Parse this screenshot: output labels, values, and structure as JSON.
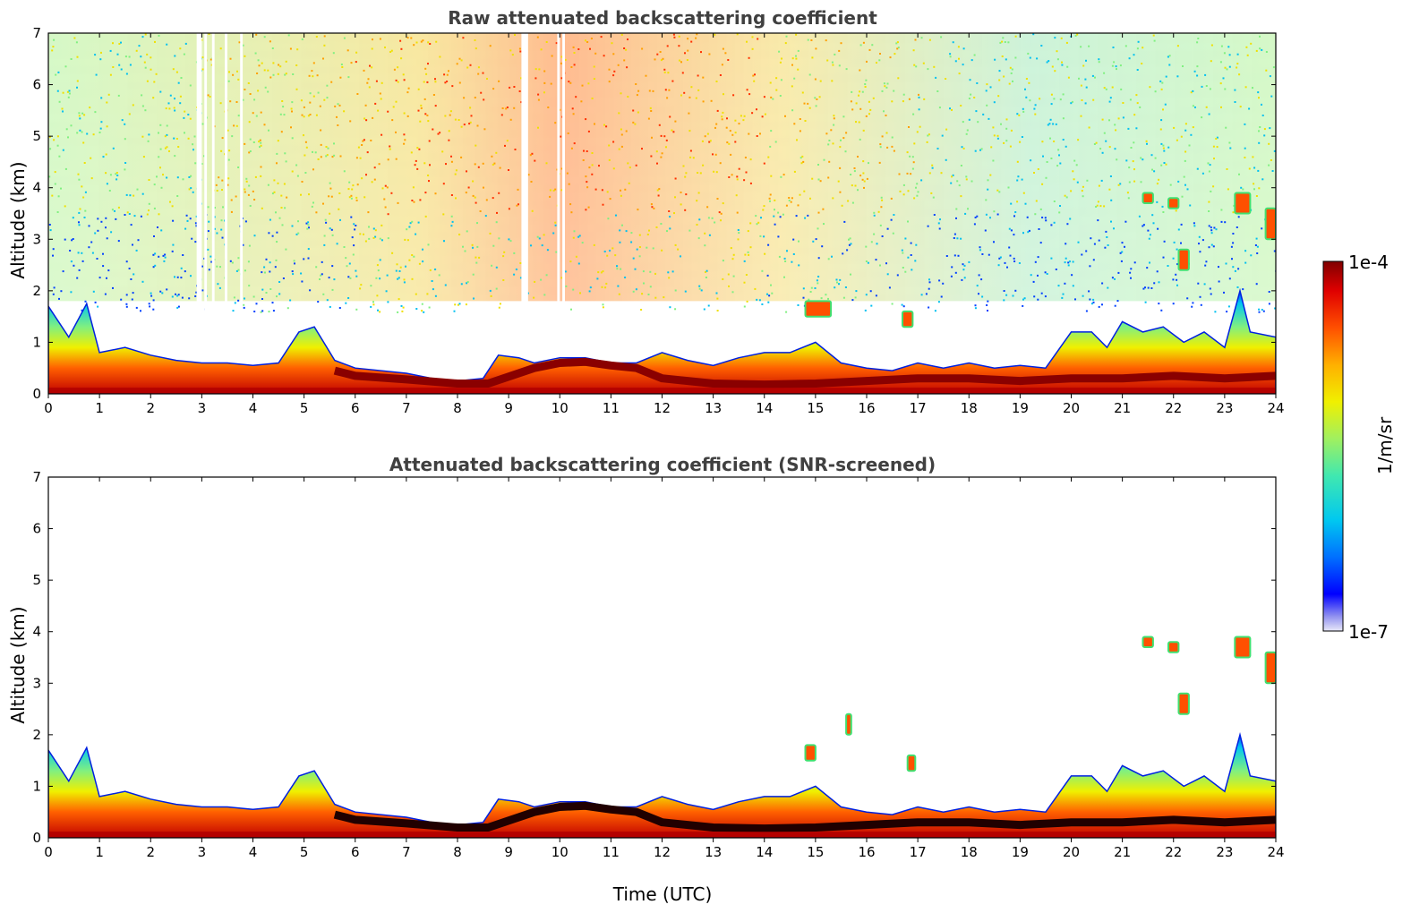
{
  "chart_data": [
    {
      "type": "heatmap",
      "title": "Raw attenuated backscattering coefficient",
      "xlabel": "",
      "ylabel": "Altitude (km)",
      "xlim": [
        0,
        24
      ],
      "ylim": [
        0,
        7
      ],
      "xticks": [
        "0",
        "1",
        "2",
        "3",
        "4",
        "5",
        "6",
        "7",
        "8",
        "9",
        "10",
        "11",
        "12",
        "13",
        "14",
        "15",
        "16",
        "17",
        "18",
        "19",
        "20",
        "21",
        "22",
        "23",
        "24"
      ],
      "yticks": [
        "0",
        "1",
        "2",
        "3",
        "4",
        "5",
        "6",
        "7"
      ],
      "boundary_layer_top_km": [
        [
          0,
          1.7
        ],
        [
          0.4,
          1.1
        ],
        [
          0.75,
          1.75
        ],
        [
          1,
          0.8
        ],
        [
          1.5,
          0.9
        ],
        [
          2,
          0.75
        ],
        [
          2.5,
          0.65
        ],
        [
          3,
          0.6
        ],
        [
          3.5,
          0.6
        ],
        [
          4,
          0.55
        ],
        [
          4.5,
          0.6
        ],
        [
          4.9,
          1.2
        ],
        [
          5.2,
          1.3
        ],
        [
          5.6,
          0.65
        ],
        [
          6,
          0.5
        ],
        [
          7,
          0.4
        ],
        [
          7.5,
          0.3
        ],
        [
          8,
          0.25
        ],
        [
          8.5,
          0.3
        ],
        [
          8.8,
          0.75
        ],
        [
          9.2,
          0.7
        ],
        [
          9.5,
          0.6
        ],
        [
          10,
          0.7
        ],
        [
          10.5,
          0.7
        ],
        [
          11,
          0.6
        ],
        [
          11.5,
          0.6
        ],
        [
          12,
          0.8
        ],
        [
          12.5,
          0.65
        ],
        [
          13,
          0.55
        ],
        [
          13.5,
          0.7
        ],
        [
          14,
          0.8
        ],
        [
          14.5,
          0.8
        ],
        [
          15,
          1.0
        ],
        [
          15.5,
          0.6
        ],
        [
          16,
          0.5
        ],
        [
          16.5,
          0.45
        ],
        [
          17,
          0.6
        ],
        [
          17.5,
          0.5
        ],
        [
          18,
          0.6
        ],
        [
          18.5,
          0.5
        ],
        [
          19,
          0.55
        ],
        [
          19.5,
          0.5
        ],
        [
          20,
          1.2
        ],
        [
          20.4,
          1.2
        ],
        [
          20.7,
          0.9
        ],
        [
          21,
          1.4
        ],
        [
          21.4,
          1.2
        ],
        [
          21.8,
          1.3
        ],
        [
          22.2,
          1.0
        ],
        [
          22.6,
          1.2
        ],
        [
          23,
          0.9
        ],
        [
          23.3,
          2.0
        ],
        [
          23.5,
          1.2
        ],
        [
          24,
          1.1
        ]
      ],
      "elevated_layers": [
        {
          "time_utc": [
            21.4,
            21.6
          ],
          "altitude_km": [
            3.7,
            3.9
          ]
        },
        {
          "time_utc": [
            21.9,
            22.1
          ],
          "altitude_km": [
            3.6,
            3.8
          ]
        },
        {
          "time_utc": [
            22.1,
            22.3
          ],
          "altitude_km": [
            2.4,
            2.8
          ]
        },
        {
          "time_utc": [
            23.2,
            23.5
          ],
          "altitude_km": [
            3.5,
            3.9
          ]
        },
        {
          "time_utc": [
            23.8,
            24.0
          ],
          "altitude_km": [
            3.0,
            3.6
          ]
        },
        {
          "time_utc": [
            14.8,
            15.3
          ],
          "altitude_km": [
            1.5,
            1.8
          ]
        },
        {
          "time_utc": [
            16.7,
            16.9
          ],
          "altitude_km": [
            1.3,
            1.6
          ]
        }
      ]
    },
    {
      "type": "heatmap",
      "title": "Attenuated backscattering coefficient (SNR-screened)",
      "xlabel": "Time (UTC)",
      "ylabel": "Altitude (km)",
      "xlim": [
        0,
        24
      ],
      "ylim": [
        0,
        7
      ],
      "xticks": [
        "0",
        "1",
        "2",
        "3",
        "4",
        "5",
        "6",
        "7",
        "8",
        "9",
        "10",
        "11",
        "12",
        "13",
        "14",
        "15",
        "16",
        "17",
        "18",
        "19",
        "20",
        "21",
        "22",
        "23",
        "24"
      ],
      "yticks": [
        "0",
        "1",
        "2",
        "3",
        "4",
        "5",
        "6",
        "7"
      ],
      "elevated_layers": [
        {
          "time_utc": [
            21.4,
            21.6
          ],
          "altitude_km": [
            3.7,
            3.9
          ]
        },
        {
          "time_utc": [
            21.9,
            22.1
          ],
          "altitude_km": [
            3.6,
            3.8
          ]
        },
        {
          "time_utc": [
            22.1,
            22.3
          ],
          "altitude_km": [
            2.4,
            2.8
          ]
        },
        {
          "time_utc": [
            23.2,
            23.5
          ],
          "altitude_km": [
            3.5,
            3.9
          ]
        },
        {
          "time_utc": [
            23.8,
            24.0
          ],
          "altitude_km": [
            3.0,
            3.6
          ]
        },
        {
          "time_utc": [
            15.6,
            15.7
          ],
          "altitude_km": [
            2.0,
            2.4
          ]
        },
        {
          "time_utc": [
            14.8,
            15.0
          ],
          "altitude_km": [
            1.5,
            1.8
          ]
        },
        {
          "time_utc": [
            16.8,
            16.95
          ],
          "altitude_km": [
            1.3,
            1.6
          ]
        }
      ]
    }
  ],
  "colorbar": {
    "label": "1/m/sr",
    "max_label": "1e-4",
    "min_label": "1e-7",
    "scale": "log",
    "range": [
      1e-07,
      0.0001
    ],
    "colors": [
      "#e8e8f8",
      "#9090f0",
      "#0000ff",
      "#0070ff",
      "#00c8f0",
      "#40e8b0",
      "#a0f060",
      "#f0f000",
      "#ffb000",
      "#ff5000",
      "#e00000",
      "#800000"
    ]
  }
}
